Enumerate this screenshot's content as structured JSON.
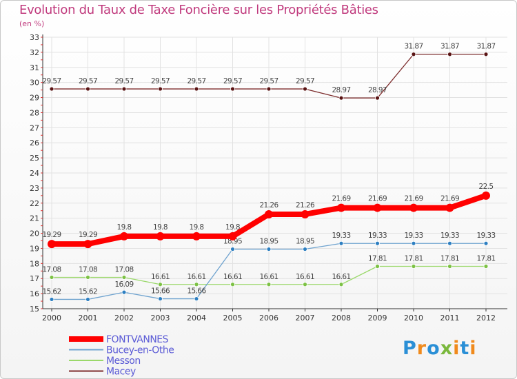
{
  "chart_data": {
    "type": "line",
    "title": "Evolution du Taux de Taxe Foncière sur les Propriétés Bâties",
    "subtitle": "(en %)",
    "ylim": [
      15,
      33
    ],
    "yticks": [
      15,
      16,
      17,
      18,
      19,
      20,
      21,
      22,
      23,
      24,
      25,
      26,
      27,
      28,
      29,
      30,
      31,
      32,
      33
    ],
    "x": [
      "2000",
      "2001",
      "2002",
      "2003",
      "2004",
      "2005",
      "2006",
      "2007",
      "2008",
      "2009",
      "2010",
      "2011",
      "2012"
    ],
    "series": [
      {
        "name": "Macey",
        "color": "#7b2a2a",
        "markerColor": "#5a1414",
        "width": 1.3,
        "radius": 3,
        "values": [
          29.57,
          29.57,
          29.57,
          29.57,
          29.57,
          29.57,
          29.57,
          29.57,
          28.97,
          28.97,
          31.87,
          31.87,
          31.87
        ],
        "labels": [
          "29.57",
          "29.57",
          "29.57",
          "29.57",
          "29.57",
          "29.57",
          "29.57",
          "29.57",
          "28.97",
          "28.97",
          "31.87",
          "31.87",
          "31.87"
        ]
      },
      {
        "name": "Messon",
        "color": "#9ad86a",
        "markerColor": "#7cc144",
        "width": 1.3,
        "radius": 3,
        "values": [
          17.08,
          17.08,
          17.08,
          16.61,
          16.61,
          16.61,
          16.61,
          16.61,
          16.61,
          17.81,
          17.81,
          17.81,
          17.81
        ],
        "labels": [
          "17.08",
          "17.08",
          "17.08",
          "16.61",
          "16.61",
          "16.61",
          "16.61",
          "16.61",
          "16.61",
          "17.81",
          "17.81",
          "17.81",
          "17.81"
        ]
      },
      {
        "name": "Bucey-en-Othe",
        "color": "#6fa3cf",
        "markerColor": "#2d7fc1",
        "width": 1.3,
        "radius": 3,
        "values": [
          15.62,
          15.62,
          16.09,
          15.66,
          15.66,
          18.95,
          18.95,
          18.95,
          19.33,
          19.33,
          19.33,
          19.33,
          19.33
        ],
        "labels": [
          "15.62",
          "15.62",
          "16.09",
          "15.66",
          "15.66",
          "18.95",
          "18.95",
          "18.95",
          "19.33",
          "19.33",
          "19.33",
          "19.33",
          "19.33"
        ]
      },
      {
        "name": "FONTVANNES",
        "color": "#ff0000",
        "markerColor": "#ff0000",
        "width": 8,
        "radius": 6,
        "values": [
          19.29,
          19.29,
          19.8,
          19.8,
          19.8,
          19.8,
          21.26,
          21.26,
          21.69,
          21.69,
          21.69,
          21.69,
          22.5
        ],
        "labels": [
          "19.29",
          "19.29",
          "19.8",
          "19.8",
          "19.8",
          "19.8",
          "21.26",
          "21.26",
          "21.69",
          "21.69",
          "21.69",
          "21.69",
          "22.5"
        ]
      }
    ],
    "legend": [
      "FONTVANNES",
      "Bucey-en-Othe",
      "Messon",
      "Macey"
    ]
  },
  "brand": {
    "logo": "Proxiti"
  }
}
